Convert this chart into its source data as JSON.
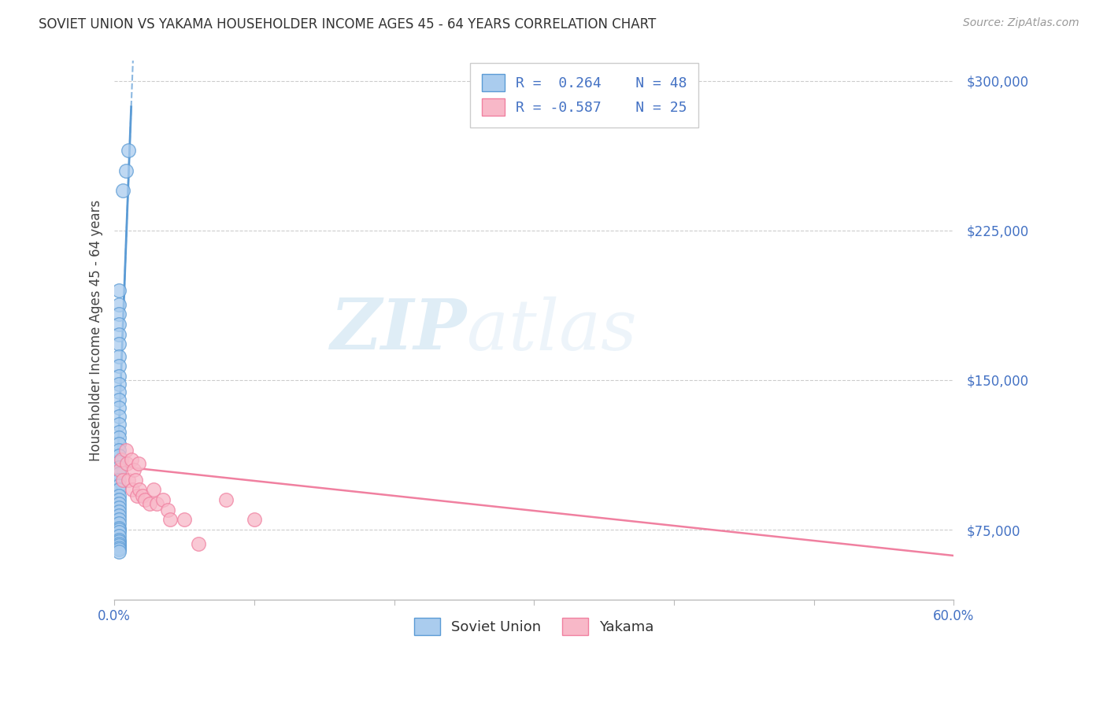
{
  "title": "SOVIET UNION VS YAKAMA HOUSEHOLDER INCOME AGES 45 - 64 YEARS CORRELATION CHART",
  "source": "Source: ZipAtlas.com",
  "ylabel": "Householder Income Ages 45 - 64 years",
  "xlim": [
    0.0,
    0.6
  ],
  "ylim": [
    40000,
    310000
  ],
  "yticks": [
    75000,
    150000,
    225000,
    300000
  ],
  "ytick_labels": [
    "$75,000",
    "$150,000",
    "$225,000",
    "$300,000"
  ],
  "background_color": "#ffffff",
  "watermark_zip": "ZIP",
  "watermark_atlas": "atlas",
  "soviet_color": "#aaccee",
  "yakama_color": "#f8b8c8",
  "soviet_line_color": "#5b9bd5",
  "yakama_line_color": "#f080a0",
  "soviet_x": [
    0.008,
    0.01,
    0.006,
    0.003,
    0.003,
    0.003,
    0.003,
    0.003,
    0.003,
    0.003,
    0.003,
    0.003,
    0.003,
    0.003,
    0.003,
    0.003,
    0.003,
    0.003,
    0.003,
    0.003,
    0.003,
    0.003,
    0.003,
    0.003,
    0.003,
    0.003,
    0.003,
    0.003,
    0.003,
    0.003,
    0.003,
    0.003,
    0.003,
    0.003,
    0.003,
    0.003,
    0.003,
    0.003,
    0.003,
    0.003,
    0.003,
    0.003,
    0.003,
    0.003,
    0.003,
    0.003,
    0.003,
    0.003
  ],
  "soviet_y": [
    255000,
    265000,
    245000,
    195000,
    188000,
    183000,
    178000,
    173000,
    168000,
    162000,
    157000,
    152000,
    148000,
    144000,
    140000,
    136000,
    132000,
    128000,
    124000,
    121000,
    118000,
    115000,
    112000,
    109000,
    106000,
    103000,
    100000,
    97000,
    95000,
    92000,
    90000,
    88000,
    86000,
    84000,
    82000,
    80000,
    78000,
    76000,
    75000,
    74000,
    72000,
    70000,
    69000,
    68000,
    67000,
    66000,
    65000,
    64000
  ],
  "yakama_x": [
    0.004,
    0.005,
    0.006,
    0.008,
    0.009,
    0.01,
    0.012,
    0.013,
    0.014,
    0.015,
    0.016,
    0.017,
    0.018,
    0.02,
    0.022,
    0.025,
    0.028,
    0.03,
    0.035,
    0.038,
    0.04,
    0.05,
    0.06,
    0.08,
    0.1
  ],
  "yakama_y": [
    105000,
    110000,
    100000,
    115000,
    108000,
    100000,
    110000,
    95000,
    105000,
    100000,
    92000,
    108000,
    95000,
    92000,
    90000,
    88000,
    95000,
    88000,
    90000,
    85000,
    80000,
    80000,
    68000,
    90000,
    80000
  ]
}
